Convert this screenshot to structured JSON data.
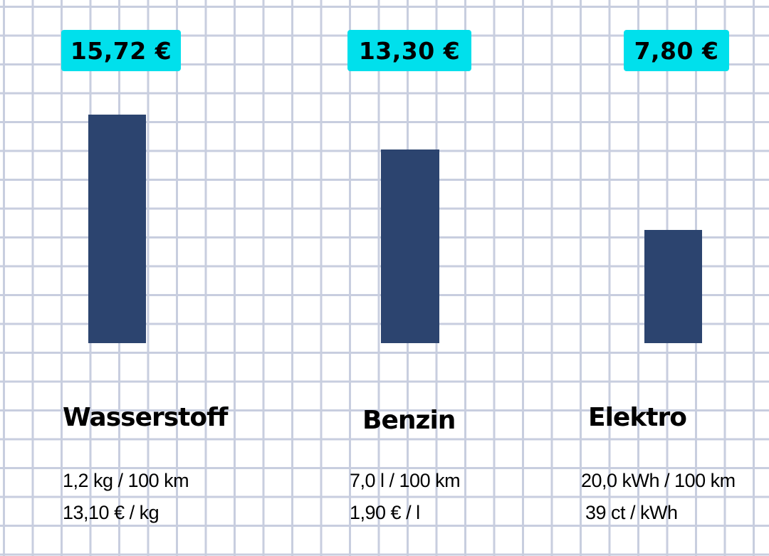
{
  "colors": {
    "bar": "#2c446f",
    "label_box": "#00e0ec",
    "grid": "#c8cedf"
  },
  "chart_data": {
    "type": "bar",
    "categories": [
      "Wasserstoff",
      "Benzin",
      "Elektro"
    ],
    "values": [
      15.72,
      13.3,
      7.8
    ],
    "value_labels": [
      "15,72 €",
      "13,30 €",
      "7,80 €"
    ],
    "ylim": [
      0,
      15.72
    ],
    "grid": true,
    "details": [
      {
        "consumption": "1,2 kg / 100 km",
        "price": "13,10 € / kg"
      },
      {
        "consumption": "7,0 l / 100 km",
        "price": "1,90 € / l"
      },
      {
        "consumption": "20,0 kWh / 100 km",
        "price": "39 ct / kWh"
      }
    ]
  }
}
